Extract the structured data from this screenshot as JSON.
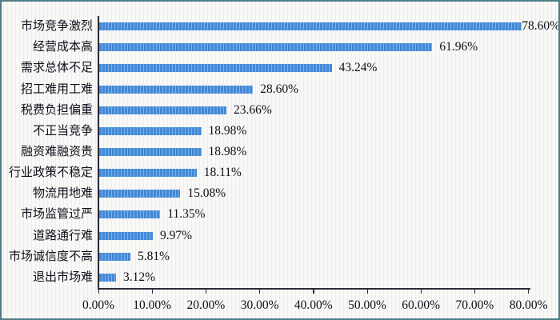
{
  "chart_data": {
    "type": "bar",
    "orientation": "horizontal",
    "title": "",
    "xlabel": "",
    "ylabel": "",
    "categories": [
      "市场竞争激烈",
      "经营成本高",
      "需求总体不足",
      "招工难用工难",
      "税费负担偏重",
      "不正当竞争",
      "融资难融资贵",
      "行业政策不稳定",
      "物流用地难",
      "市场监管过严",
      "道路通行难",
      "市场诚信度不高",
      "退出市场难"
    ],
    "values": [
      78.6,
      61.96,
      43.24,
      28.6,
      23.66,
      18.98,
      18.98,
      18.11,
      15.08,
      11.35,
      9.97,
      5.81,
      3.12
    ],
    "value_labels": [
      "78.60%",
      "61.96%",
      "43.24%",
      "28.60%",
      "23.66%",
      "18.98%",
      "18.98%",
      "18.11%",
      "15.08%",
      "11.35%",
      "9.97%",
      "5.81%",
      "3.12%"
    ],
    "x_tick_labels": [
      "0.00%",
      "10.00%",
      "20.00%",
      "30.00%",
      "40.00%",
      "50.00%",
      "60.00%",
      "70.00%",
      "80.00%"
    ],
    "x_tick_values": [
      0,
      10,
      20,
      30,
      40,
      50,
      60,
      70,
      80
    ],
    "xlim": [
      0,
      80
    ],
    "grid": "off",
    "legend": "none",
    "colors": {
      "bar": "#4289d8",
      "bar_stripe": "#7fb0e9",
      "axis": "#2b2b38",
      "text": "#10101c",
      "frame_border": "#4d7d86",
      "background": "#f8f8f6"
    }
  }
}
